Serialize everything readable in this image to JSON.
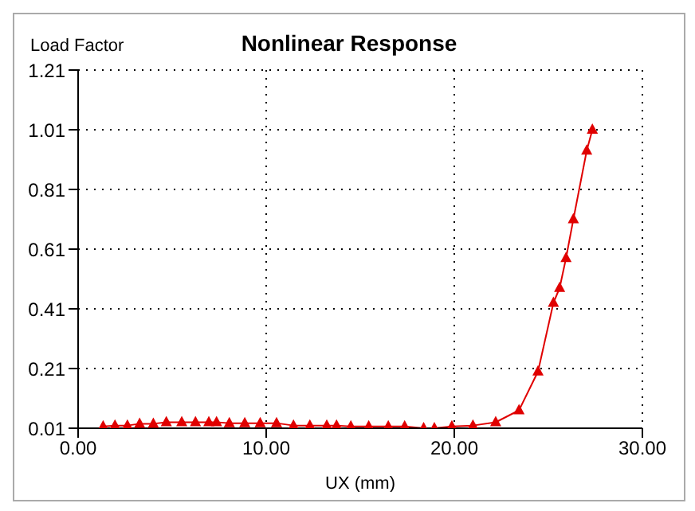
{
  "chart_data": {
    "type": "line",
    "title": "Nonlinear Response",
    "xlabel": "UX (mm)",
    "ylabel": "Load Factor",
    "x": [
      1.33,
      1.96,
      2.62,
      3.27,
      4.0,
      4.69,
      5.51,
      6.24,
      6.95,
      7.36,
      8.04,
      8.86,
      9.68,
      10.55,
      11.45,
      12.32,
      13.22,
      13.74,
      14.5,
      15.45,
      16.49,
      17.36,
      18.37,
      18.94,
      19.87,
      20.99,
      22.2,
      23.44,
      24.45,
      25.27,
      25.6,
      25.94,
      26.33,
      27.04,
      27.34
    ],
    "series": [
      {
        "color": "#e00000",
        "values": [
          0.016,
          0.019,
          0.019,
          0.025,
          0.025,
          0.03,
          0.03,
          0.03,
          0.03,
          0.03,
          0.027,
          0.027,
          0.027,
          0.027,
          0.019,
          0.019,
          0.019,
          0.019,
          0.016,
          0.016,
          0.016,
          0.016,
          0.01,
          0.01,
          0.016,
          0.019,
          0.03,
          0.07,
          0.2,
          0.43,
          0.48,
          0.58,
          0.71,
          0.94,
          1.01
        ]
      }
    ],
    "xlim": [
      0,
      30
    ],
    "xticks": [
      {
        "value": 0,
        "label": "0.00"
      },
      {
        "value": 10,
        "label": "10.00"
      },
      {
        "value": 20,
        "label": "20.00"
      },
      {
        "value": 30,
        "label": "30.00"
      }
    ],
    "ylim": [
      0.01,
      1.21
    ],
    "yticks": [
      0.01,
      0.21,
      0.41,
      0.61,
      0.81,
      1.01,
      1.21
    ],
    "grid": true,
    "marker": "triangle",
    "line_style": "solid",
    "legend": false
  }
}
